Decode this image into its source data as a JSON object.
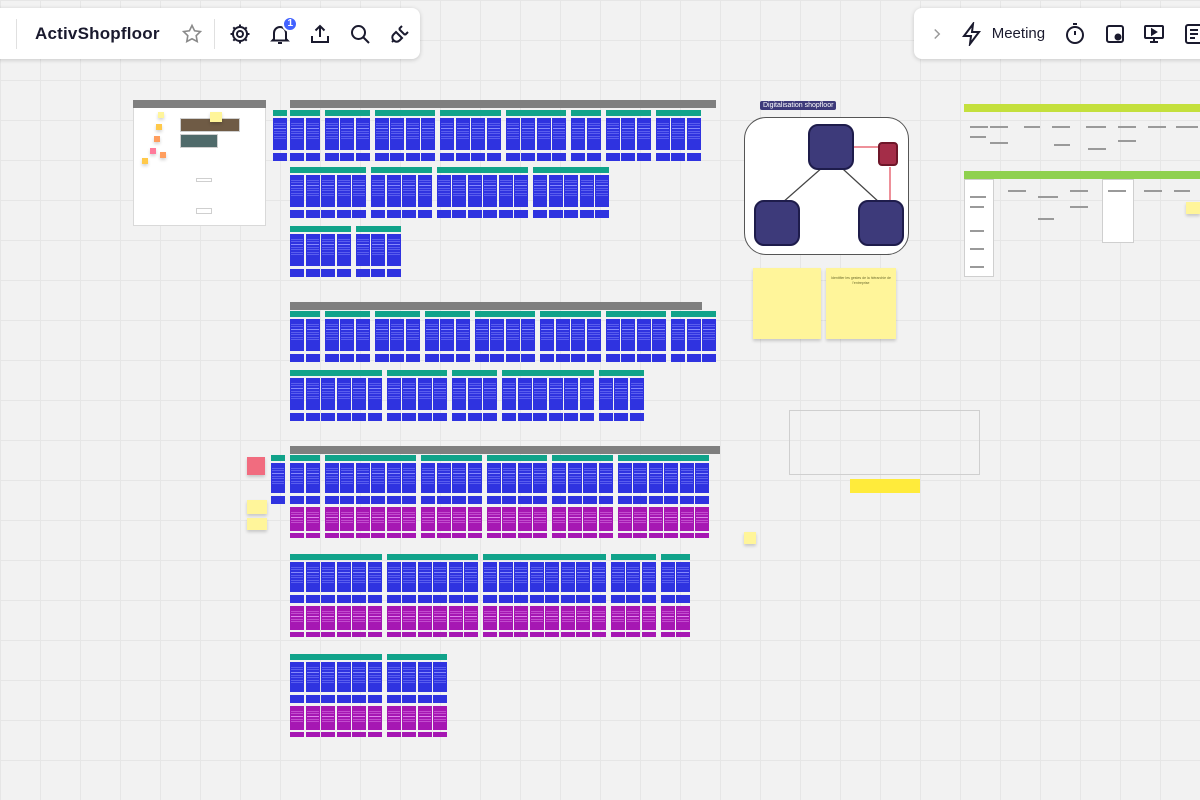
{
  "toolbar_left": {
    "board_title": "ActivShopfloor",
    "notification_count": "1"
  },
  "toolbar_right": {
    "meeting_label": "Meeting"
  },
  "board": {
    "diagram_title": "Digitalisation shopfloor",
    "sticky_text": "Identifier les gestes de la hiérarchie de l'entreprise"
  },
  "colors": {
    "card_blue": "#2f33e0",
    "card_magenta": "#a617b3",
    "header_teal": "#11a38a",
    "frame_gray": "#7f7f7f",
    "diagram_node": "#3d3a7a",
    "sticky_yellow": "#fff59a",
    "accent": "#4262ff"
  }
}
